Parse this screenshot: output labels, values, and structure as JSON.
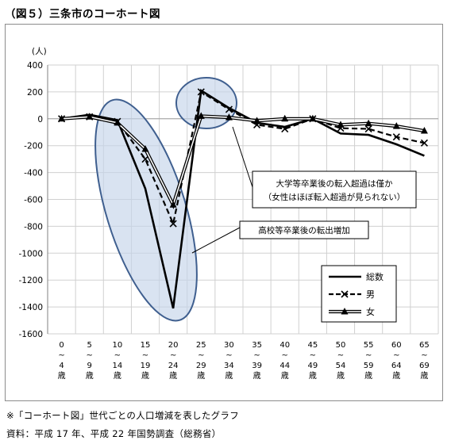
{
  "figure": {
    "title": "（図５）三条市のコーホート図",
    "note": "※「コーホート図」世代ごとの人口増減を表したグラフ",
    "source": "資料：平成 17 年、平成 22 年国勢調査（総務省）"
  },
  "chart_data": {
    "type": "line",
    "ylabel": "(人)",
    "ylim": [
      -1600,
      400
    ],
    "yticks": [
      400,
      200,
      0,
      -200,
      -400,
      -600,
      -800,
      -1000,
      -1200,
      -1400,
      -1600
    ],
    "grid": true,
    "legend_position": "right",
    "categories": [
      [
        "0",
        "~",
        "4",
        "歳"
      ],
      [
        "5",
        "~",
        "9",
        "歳"
      ],
      [
        "10",
        "~",
        "14",
        "歳"
      ],
      [
        "15",
        "~",
        "19",
        "歳"
      ],
      [
        "20",
        "~",
        "24",
        "歳"
      ],
      [
        "25",
        "~",
        "29",
        "歳"
      ],
      [
        "30",
        "~",
        "34",
        "歳"
      ],
      [
        "35",
        "~",
        "39",
        "歳"
      ],
      [
        "40",
        "~",
        "44",
        "歳"
      ],
      [
        "45",
        "~",
        "49",
        "歳"
      ],
      [
        "50",
        "~",
        "54",
        "歳"
      ],
      [
        "55",
        "~",
        "59",
        "歳"
      ],
      [
        "60",
        "~",
        "64",
        "歳"
      ],
      [
        "65",
        "~",
        "69",
        "歳"
      ]
    ],
    "series": [
      {
        "name": "総数",
        "style": "solid",
        "color": "#000000",
        "values": [
          0,
          30,
          -10,
          -520,
          -1410,
          210,
          80,
          -30,
          -60,
          0,
          -110,
          -120,
          -190,
          -275
        ]
      },
      {
        "name": "男",
        "style": "dashed-x",
        "color": "#000000",
        "values": [
          0,
          15,
          -20,
          -300,
          -780,
          200,
          70,
          -45,
          -75,
          0,
          -70,
          -75,
          -135,
          -180
        ]
      },
      {
        "name": "女",
        "style": "double-triangle",
        "color": "#000000",
        "values": [
          0,
          15,
          -30,
          -225,
          -640,
          20,
          10,
          -15,
          0,
          0,
          -45,
          -35,
          -55,
          -90
        ]
      }
    ],
    "annotations": [
      {
        "text": [
          "大学等卒業後の転入超過は僅か",
          "（女性はほぼ転入超過が見られない）"
        ]
      },
      {
        "text": [
          "高校等卒業後の転出増加"
        ]
      }
    ]
  }
}
